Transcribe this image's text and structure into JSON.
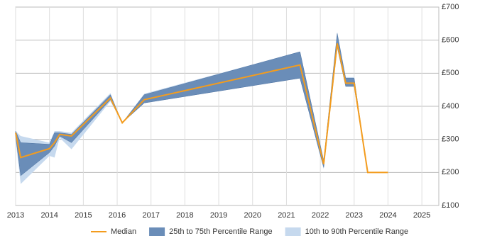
{
  "chart_data": {
    "type": "band-line",
    "x": [
      2013.0,
      2013.15,
      2014.0,
      2014.15,
      2014.3,
      2014.65,
      2015.8,
      2016.15,
      2016.8,
      2021.4,
      2022.1,
      2022.5,
      2022.75,
      2023.0,
      2023.4,
      2024.0
    ],
    "series": [
      {
        "name": "Median",
        "color": "#f39c1e",
        "values": [
          320,
          245,
          272,
          290,
          315,
          310,
          425,
          350,
          420,
          525,
          225,
          590,
          470,
          470,
          200,
          200
        ]
      },
      {
        "name": "25th to 75th Percentile Range",
        "color": "#6a8db8",
        "low": [
          310,
          190,
          260,
          280,
          310,
          290,
          420,
          350,
          410,
          485,
          215,
          580,
          460,
          460,
          200,
          200
        ],
        "high": [
          325,
          290,
          285,
          320,
          320,
          315,
          435,
          350,
          435,
          565,
          235,
          620,
          485,
          485,
          200,
          200
        ]
      },
      {
        "name": "10th to 90th Percentile Range",
        "color": "#c6d9ee",
        "low": [
          300,
          165,
          250,
          245,
          305,
          270,
          415,
          350,
          410,
          485,
          210,
          575,
          460,
          460,
          200,
          200
        ],
        "high": [
          325,
          310,
          290,
          325,
          325,
          320,
          440,
          350,
          438,
          565,
          240,
          625,
          488,
          488,
          200,
          200
        ]
      }
    ],
    "xlim": [
      2013,
      2025.5
    ],
    "xticks": [
      2013,
      2014,
      2015,
      2016,
      2017,
      2018,
      2019,
      2020,
      2021,
      2022,
      2023,
      2024,
      2025
    ],
    "ylim": [
      100,
      700
    ],
    "yticks": [
      {
        "value": 100,
        "label": "£100"
      },
      {
        "value": 200,
        "label": "£200"
      },
      {
        "value": 300,
        "label": "£300"
      },
      {
        "value": 400,
        "label": "£400"
      },
      {
        "value": 500,
        "label": "£500"
      },
      {
        "value": 600,
        "label": "£600"
      },
      {
        "value": 700,
        "label": "£700"
      }
    ],
    "grid": true,
    "legend": "bottom"
  }
}
